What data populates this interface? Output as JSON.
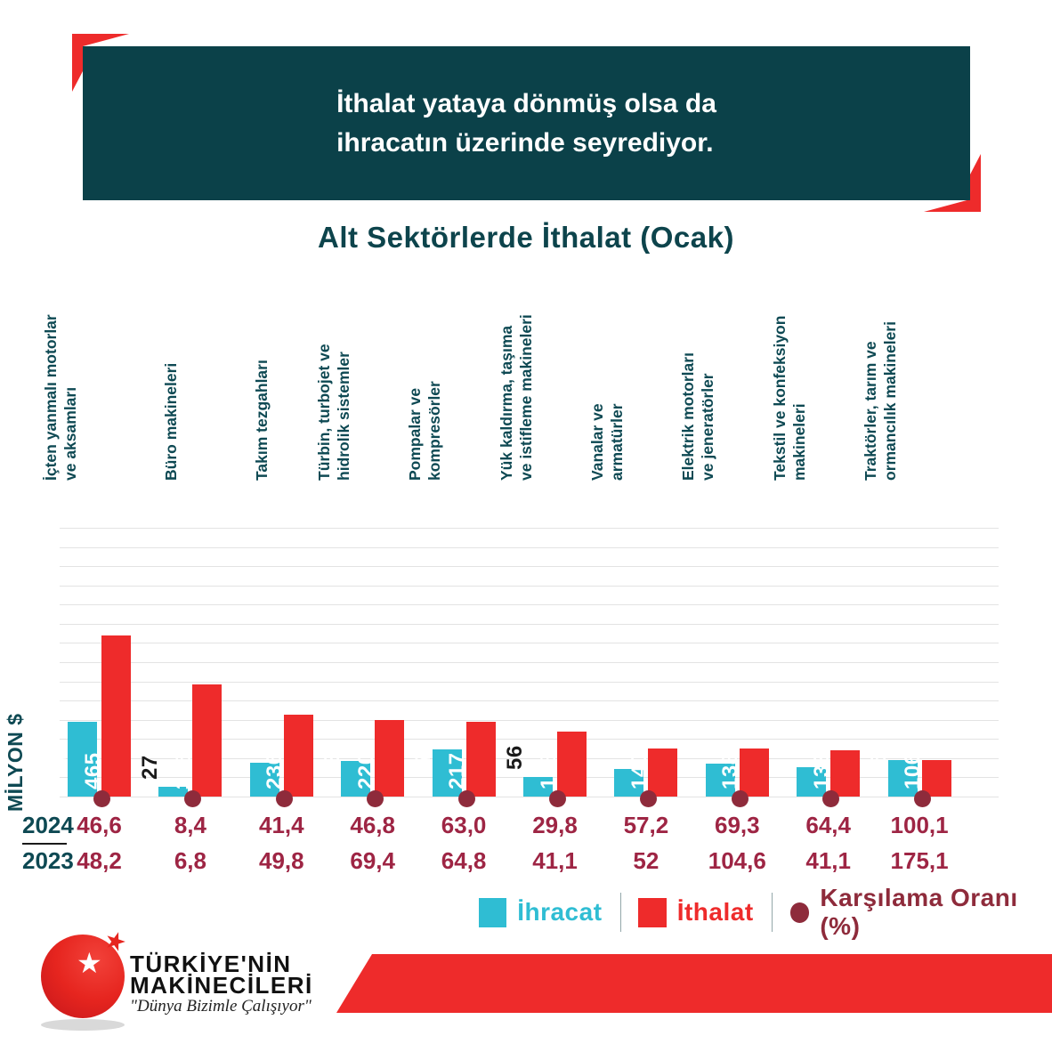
{
  "colors": {
    "teal": "#0B4149",
    "export_cyan": "#2FBDD3",
    "import_red": "#EE2B2B",
    "ratio_maroon": "#9E2544",
    "dot_maroon": "#8E2B3B",
    "gridline": "#E3E3E3"
  },
  "header": {
    "title_line1": "İthalat yataya dönmüş olsa da",
    "title_line2": "ihracatın üzerinde seyrediyor."
  },
  "chart_data": {
    "type": "bar",
    "title": "Alt Sektörlerde İthalat (Ocak)",
    "ylabel": "MİLYON $",
    "grid": true,
    "ylim": [
      0,
      760
    ],
    "legend_position": "bottom",
    "categories": [
      "İçten yanmalı motorlar\nve aksamları",
      "Büro makineleri",
      "Takım tezgahları",
      "Türbin, turbojet ve\nhidrolik sistemler",
      "Pompalar ve\nkompresörler",
      "Yük kaldırma, taşıma\nve istifleme makineleri",
      "Vanalar ve\narmatürler",
      "Elektrik motorları\nve jeneratörler",
      "Tekstil ve konfeksiyon\nmakineleri",
      "Traktörler, tarım ve\normancılık makineleri"
    ],
    "series": [
      {
        "name": "İhracat",
        "color": "#2FBDD3",
        "values": [
          217,
          27,
          98,
          103,
          137,
          56,
          80,
          96,
          85,
          106
        ]
      },
      {
        "name": "İthalat",
        "color": "#EE2B2B",
        "values": [
          465,
          325,
          236,
          220,
          217,
          188,
          140,
          138,
          133,
          106
        ]
      }
    ],
    "coverage_ratio": {
      "name": "Karşılama Oranı (%)",
      "color": "#8E2B3B",
      "rows": [
        {
          "label": "2024",
          "values": [
            "46,6",
            "8,4",
            "41,4",
            "46,8",
            "63,0",
            "29,8",
            "57,2",
            "69,3",
            "64,4",
            "100,1"
          ]
        },
        {
          "label": "2023",
          "values": [
            "48,2",
            "6,8",
            "49,8",
            "69,4",
            "64,8",
            "41,1",
            "52",
            "104,6",
            "41,1",
            "175,1"
          ]
        }
      ]
    }
  },
  "legend": [
    {
      "label": "İhracat",
      "color": "#2FBDD3",
      "swatch": "square"
    },
    {
      "label": "İthalat",
      "color": "#EE2B2B",
      "swatch": "square"
    },
    {
      "label": "Karşılama Oranı (%)",
      "color": "#8E2B3B",
      "swatch": "dot"
    }
  ],
  "footer": {
    "brand_line1": "TÜRKİYE'NİN",
    "brand_line2": "MAKİNECİLERİ",
    "tagline": "\"Dünya Bizimle Çalışıyor\""
  }
}
